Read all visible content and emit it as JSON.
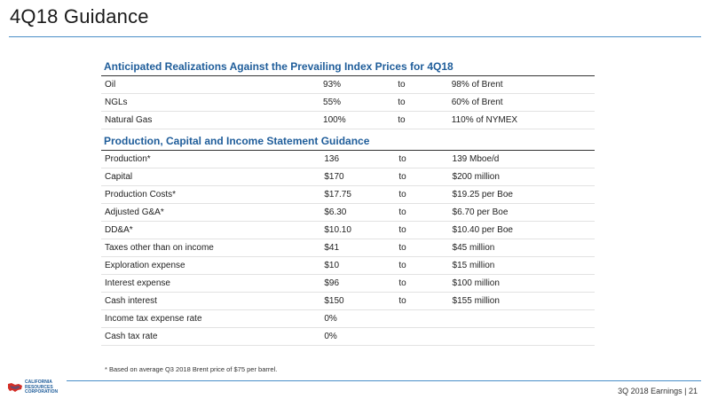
{
  "page": {
    "title": "4Q18 Guidance",
    "footnote": "* Based on average Q3 2018 Brent price of $75 per barrel.",
    "footer": "3Q 2018 Earnings  |  21",
    "logo": {
      "lines": [
        "CALIFORNIA",
        "RESOURCES",
        "CORPORATION"
      ],
      "color_red": "#d42e27",
      "color_blue": "#1f5d9a"
    },
    "accent_color": "#4a8fc8"
  },
  "sections": [
    {
      "title": "Anticipated Realizations Against the Prevailing Index Prices for 4Q18",
      "rows": [
        [
          "Oil",
          "93%",
          "to",
          "98% of Brent"
        ],
        [
          "NGLs",
          "55%",
          "to",
          "60% of Brent"
        ],
        [
          "Natural Gas",
          "100%",
          "to",
          "110% of NYMEX"
        ]
      ]
    },
    {
      "title": "Production, Capital and Income Statement Guidance",
      "rows": [
        [
          "Production*",
          "136",
          "to",
          "139 Mboe/d"
        ],
        [
          "Capital",
          "$170",
          "to",
          "$200 million"
        ],
        [
          "Production Costs*",
          "$17.75",
          "to",
          "$19.25 per Boe"
        ],
        [
          "Adjusted G&A*",
          "$6.30",
          "to",
          "$6.70 per Boe"
        ],
        [
          "DD&A*",
          "$10.10",
          "to",
          "$10.40 per Boe"
        ],
        [
          "Taxes other than on income",
          "$41",
          "to",
          "$45 million"
        ],
        [
          "Exploration expense",
          "$10",
          "to",
          "$15 million"
        ],
        [
          "Interest expense",
          "$96",
          "to",
          "$100 million"
        ],
        [
          "Cash interest",
          "$150",
          "to",
          "$155 million"
        ],
        [
          "Income tax expense rate",
          "0%",
          "",
          ""
        ],
        [
          "Cash tax rate",
          "0%",
          "",
          ""
        ]
      ]
    }
  ]
}
